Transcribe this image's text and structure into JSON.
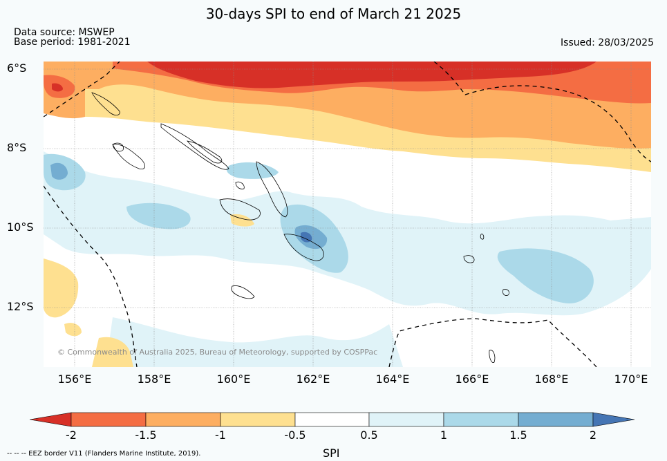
{
  "header": {
    "title": "30-days SPI to end of March 21 2025",
    "data_source": "Data source: MSWEP",
    "base_period": "Base period: 1981-2021",
    "issued": "Issued: 28/03/2025"
  },
  "map": {
    "lat_labels": [
      "6°S",
      "8°S",
      "10°S",
      "12°S"
    ],
    "lon_labels": [
      "156°E",
      "158°E",
      "160°E",
      "162°E",
      "164°E",
      "166°E",
      "168°E",
      "170°E"
    ],
    "copyright": "© Commonwealth of Australia 2025, Bureau of Meteorology, supported by COSPPac"
  },
  "colorbar": {
    "label": "SPI",
    "ticks": [
      "-2",
      "-1.5",
      "-1",
      "-0.5",
      "0.5",
      "1",
      "1.5",
      "2"
    ],
    "colors": {
      "lt_-2": "#d73027",
      "-2_-1.5": "#f46d43",
      "-1.5_-1": "#fdae61",
      "-1_-0.5": "#fee090",
      "-0.5_0.5": "#ffffff",
      "0.5_1": "#e0f3f8",
      "1_1.5": "#abd9e9",
      "1.5_2": "#74add1",
      "gt_2": "#4575b4"
    }
  },
  "footer": {
    "eez_legend": "--  --  -- EEZ border V11 (Flanders Marine Institute, 2019)."
  }
}
